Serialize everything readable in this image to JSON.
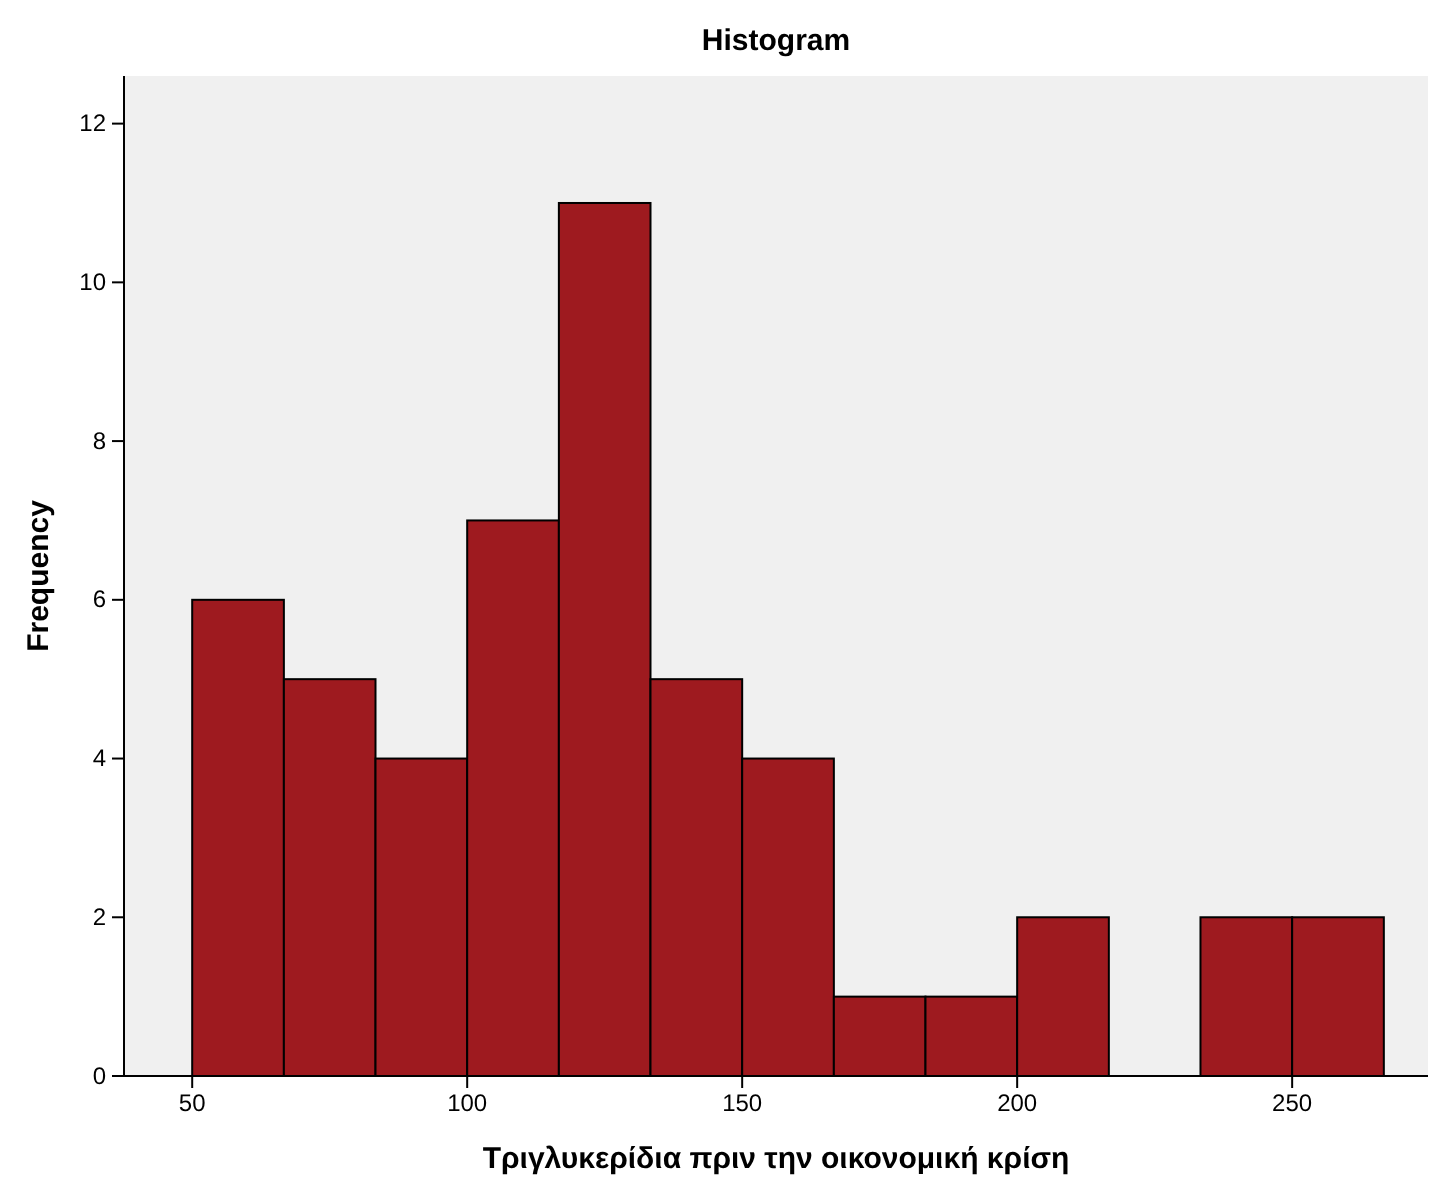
{
  "chart_data": {
    "type": "histogram",
    "title": "Histogram",
    "xlabel": "Τριγλυκερίδια πριν την οικονομική κρίση",
    "ylabel": "Frequency",
    "bins": [
      50,
      66.67,
      83.33,
      100,
      116.67,
      133.33,
      150,
      166.67,
      183.33,
      200,
      216.67,
      233.33,
      250,
      266.67
    ],
    "values": [
      6,
      5,
      4,
      7,
      11,
      5,
      4,
      1,
      1,
      2,
      0,
      2,
      2
    ],
    "color": "#9e1a1f",
    "xlim": [
      37.6,
      274.7
    ],
    "xticks": [
      50,
      100,
      150,
      200,
      250
    ],
    "ylim": [
      0,
      12.6
    ],
    "yticks": [
      0,
      2,
      4,
      6,
      8,
      10,
      12
    ],
    "grid": false
  }
}
